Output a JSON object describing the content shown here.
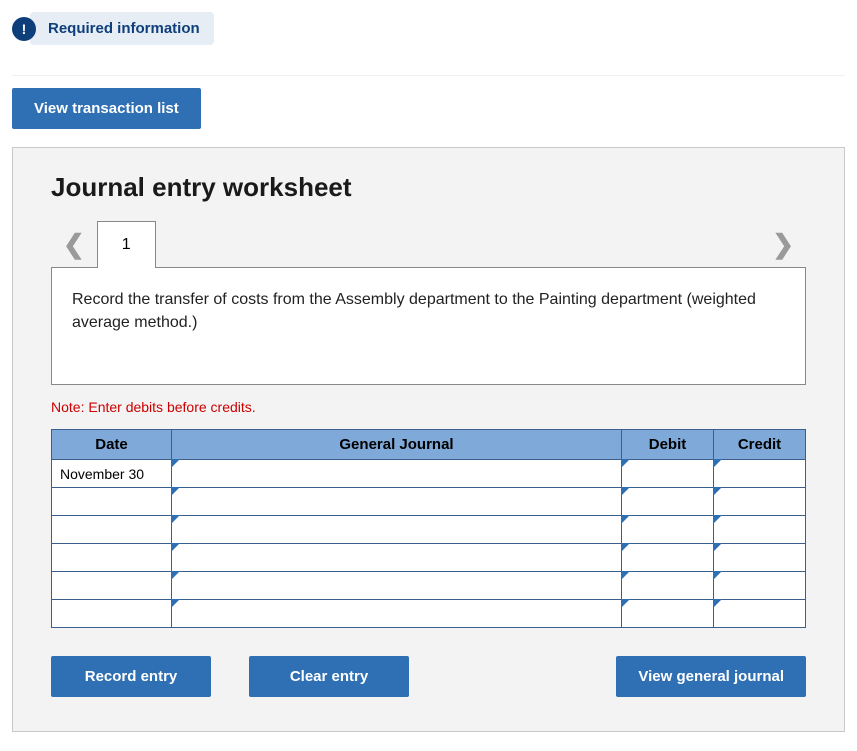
{
  "header": {
    "badge_symbol": "!",
    "required_info_label": "Required information"
  },
  "actions": {
    "view_transaction_list": "View transaction list"
  },
  "worksheet": {
    "title": "Journal entry worksheet",
    "tabs": [
      {
        "label": "1"
      }
    ],
    "instruction": "Record the transfer of costs from the Assembly department to the Painting department (weighted average method.)",
    "note": "Note: Enter debits before credits.",
    "table": {
      "headers": {
        "date": "Date",
        "general_journal": "General Journal",
        "debit": "Debit",
        "credit": "Credit"
      },
      "rows": [
        {
          "date": "November 30",
          "general_journal": "",
          "debit": "",
          "credit": ""
        },
        {
          "date": "",
          "general_journal": "",
          "debit": "",
          "credit": ""
        },
        {
          "date": "",
          "general_journal": "",
          "debit": "",
          "credit": ""
        },
        {
          "date": "",
          "general_journal": "",
          "debit": "",
          "credit": ""
        },
        {
          "date": "",
          "general_journal": "",
          "debit": "",
          "credit": ""
        },
        {
          "date": "",
          "general_journal": "",
          "debit": "",
          "credit": ""
        }
      ]
    },
    "buttons": {
      "record_entry": "Record entry",
      "clear_entry": "Clear entry",
      "view_general_journal": "View general journal"
    }
  },
  "colors": {
    "primary_button": "#2f6fb3",
    "table_header": "#7fa9d8",
    "table_border": "#3a5f8a",
    "panel_bg": "#f3f3f3",
    "note_color": "#cc0000",
    "badge_bg": "#0f3f7a"
  }
}
